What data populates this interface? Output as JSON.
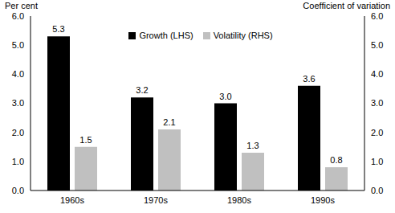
{
  "chart_data": {
    "type": "bar",
    "ylabel": "Per cent",
    "y2label": "Coefficient of variation",
    "categories": [
      "1960s",
      "1970s",
      "1980s",
      "1990s"
    ],
    "series": [
      {
        "name": "Growth (LHS)",
        "color": "#000000",
        "values": [
          5.3,
          3.2,
          3.0,
          3.6
        ],
        "value_labels": [
          "5.3",
          "3.2",
          "3.0",
          "3.6"
        ]
      },
      {
        "name": "Volatility (RHS)",
        "color": "#c0c0c0",
        "values": [
          1.5,
          2.1,
          1.3,
          0.8
        ],
        "axis": "y2"
      }
    ],
    "ylim": [
      0,
      6
    ],
    "yticks": [
      {
        "value": 0,
        "label": "0.0"
      },
      {
        "value": 1,
        "label": "1.0"
      },
      {
        "value": 2,
        "label": "2.0"
      },
      {
        "value": 3,
        "label": "3.0"
      },
      {
        "value": 4,
        "label": "4.0"
      },
      {
        "value": 5,
        "label": "5.0"
      },
      {
        "value": 6,
        "label": "6.0"
      }
    ],
    "y2lim": [
      0,
      6
    ],
    "y2ticks": [
      {
        "value": 0,
        "label": "0.0"
      },
      {
        "value": 1,
        "label": "1.0"
      },
      {
        "value": 2,
        "label": "2.0"
      },
      {
        "value": 3,
        "label": "3.0"
      },
      {
        "value": 4,
        "label": "4.0"
      },
      {
        "value": 5,
        "label": "5.0"
      },
      {
        "value": 6,
        "label": "6.0"
      }
    ],
    "data_labels": true,
    "legend": "top",
    "grid": false
  }
}
